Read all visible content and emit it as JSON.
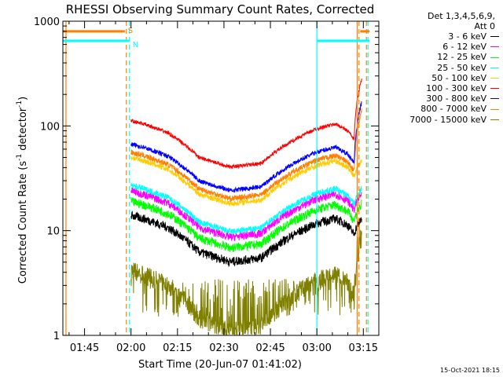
{
  "chart_data": {
    "type": "line",
    "title": "RHESSI Observing Summary Count Rates, Corrected",
    "xlabel": "Start Time (20-Jun-07 01:41:02)",
    "ylabel_main": "Corrected Count Rate (s",
    "ylabel_sup1": "-1",
    "ylabel_mid": " detector",
    "ylabel_sup2": "-1",
    "ylabel_end": ")",
    "y_scale": "log",
    "ylim": [
      1,
      1000
    ],
    "xlim": [
      "01:38",
      "03:20"
    ],
    "x_ticks": [
      "01:45",
      "02:00",
      "02:15",
      "02:30",
      "02:45",
      "03:00",
      "03:15"
    ],
    "y_ticks": [
      "1",
      "10",
      "100",
      "1000"
    ],
    "legend": {
      "header": [
        "Det 1,3,4,5,6,9,",
        "Att 0"
      ],
      "placement": "right"
    },
    "flags": [
      {
        "label": "S",
        "color": "#ff8000",
        "value": 800
      },
      {
        "label": "N",
        "color": "#00ffff",
        "value": 650
      }
    ],
    "series": [
      {
        "name": "3 - 6 keV",
        "color": "#000000"
      },
      {
        "name": "6 - 12 keV",
        "color": "#ff00ff"
      },
      {
        "name": "12 - 25 keV",
        "color": "#00ff00"
      },
      {
        "name": "25 - 50 keV",
        "color": "#00ffff"
      },
      {
        "name": "50 - 100 keV",
        "color": "#ffcc00"
      },
      {
        "name": "100 - 300 keV",
        "color": "#ff0000"
      },
      {
        "name": "300 - 800 keV",
        "color": "#0000ff"
      },
      {
        "name": "800 - 7000 keV",
        "color": "#ff8000"
      },
      {
        "name": "7000 - 15000 keV",
        "color": "#808000"
      }
    ]
  },
  "footer": {
    "timestamp": "15-Oct-2021 18:15"
  }
}
